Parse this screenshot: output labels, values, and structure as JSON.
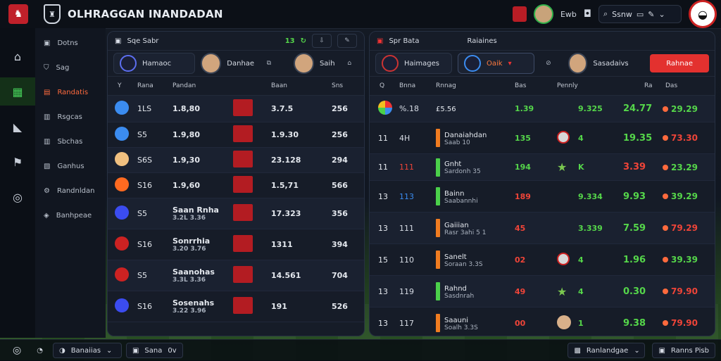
{
  "app": {
    "title": "OLHRAGGAN INANDADAN"
  },
  "topbar": {
    "user_label": "Ewb",
    "search_label": "Ssnw"
  },
  "rail": [
    {
      "icon": "house-icon"
    },
    {
      "icon": "pitch-icon"
    },
    {
      "icon": "boot-icon"
    },
    {
      "icon": "flag-icon"
    },
    {
      "icon": "ball-icon"
    }
  ],
  "sidebar": [
    {
      "label": "Dotns",
      "icon": "grid-icon"
    },
    {
      "label": "Sag",
      "icon": "shield-icon"
    },
    {
      "label": "Randatis",
      "icon": "team-icon"
    },
    {
      "label": "Rsgcas",
      "icon": "doc-icon"
    },
    {
      "label": "Sbchas",
      "icon": "doc-icon"
    },
    {
      "label": "Ganhus",
      "icon": "image-icon"
    },
    {
      "label": "Randnldan",
      "icon": "gear-icon"
    },
    {
      "label": "Banhpeae",
      "icon": "chat-icon"
    }
  ],
  "left_panel": {
    "title": "Sqe Sabr",
    "header_value": "13",
    "chip1": "Hamaoc",
    "chip2": "Danhae",
    "chip3": "Saih",
    "columns": [
      "Y",
      "Rana",
      "Pandan",
      "Baan",
      "Sns"
    ],
    "rows": [
      {
        "rank": "1LS",
        "val": "1.8,80",
        "score": "3.7.5",
        "pct": "256",
        "icon_color": "#3b8cf0",
        "label": "",
        "sub": ""
      },
      {
        "rank": "S5",
        "val": "1.9,80",
        "score": "1.9.30",
        "pct": "256",
        "icon_color": "#3b8cf0",
        "label": "",
        "sub": ""
      },
      {
        "rank": "S6S",
        "val": "1.9,30",
        "score": "23.128",
        "pct": "294",
        "icon_color": "#f0c080",
        "label": "",
        "sub": ""
      },
      {
        "rank": "S16",
        "val": "1.9,60",
        "score": "1.5,71",
        "pct": "566",
        "icon_color": "#ff6a20",
        "label": "",
        "sub": ""
      },
      {
        "rank": "S5",
        "val": "",
        "score": "17.323",
        "pct": "356",
        "icon_color": "#3b4cf0",
        "label": "Saan Rnha",
        "sub": "3.2L 3.36"
      },
      {
        "rank": "S16",
        "val": "",
        "score": "1311",
        "pct": "394",
        "icon_color": "#c22",
        "label": "Sonrrhia",
        "sub": "3.20 3.76"
      },
      {
        "rank": "S5",
        "val": "",
        "score": "14.561",
        "pct": "704",
        "icon_color": "#c22",
        "label": "Saanohas",
        "sub": "3.3L 3.36"
      },
      {
        "rank": "S16",
        "val": "",
        "score": "191",
        "pct": "526",
        "icon_color": "#3b4cf0",
        "label": "Sosenahs",
        "sub": "3.22 3.96"
      }
    ]
  },
  "right_panel": {
    "title": "Spr Bata",
    "subtitle": "Raiaines",
    "chip1": "Haimages",
    "chip2": "Oaik",
    "chip3": "Sasadaivs",
    "action_label": "Rahnae",
    "columns": [
      "Q",
      "Bnna",
      "Rnnag",
      "Bas",
      "Pennly",
      "Ra",
      "Das"
    ],
    "rows": [
      {
        "n": "",
        "tag": "%.18",
        "name": "£5.56",
        "sub": "",
        "v1": "1.39",
        "v2": "9.325",
        "v3": "24.77",
        "v4": "29.29",
        "v2c": "g",
        "v3c": "g",
        "v4c": "g",
        "bar": "",
        "icon": "multicolor"
      },
      {
        "n": "11",
        "tag": "4H",
        "name": "Danaiahdan",
        "sub": "Saab 10",
        "v1": "135",
        "v2": "4",
        "v3": "19.35",
        "v4": "73.30",
        "v2c": "g",
        "v3c": "g",
        "v4c": "r",
        "bar": "#f07c20",
        "icon": "crest"
      },
      {
        "n": "11",
        "tag": "111",
        "name": "Gnht",
        "sub": "Sardonh 35",
        "v1": "194",
        "v2": "K",
        "v3": "3.39",
        "v4": "23.29",
        "v2c": "g",
        "v3c": "r",
        "v4c": "g",
        "bar": "#4bd04a",
        "icon": "star"
      },
      {
        "n": "13",
        "tag": "113",
        "name": "Bainn",
        "sub": "Saabannhi",
        "v1": "189",
        "v2": "9.334",
        "v3": "9.93",
        "v4": "39.29",
        "v2c": "g",
        "v3c": "g",
        "v4c": "g",
        "bar": "#4bd04a",
        "icon": ""
      },
      {
        "n": "13",
        "tag": "111",
        "name": "Gaiiian",
        "sub": "Rasr 3ahi 5 1",
        "v1": "45",
        "v2": "3.339",
        "v3": "7.59",
        "v4": "79.29",
        "v2c": "g",
        "v3c": "g",
        "v4c": "r",
        "bar": "#f07c20",
        "icon": ""
      },
      {
        "n": "15",
        "tag": "110",
        "name": "Sanelt",
        "sub": "Soraan 3.3S",
        "v1": "02",
        "v2": "4",
        "v3": "1.96",
        "v4": "39.39",
        "v2c": "g",
        "v3c": "g",
        "v4c": "g",
        "bar": "#f07c20",
        "icon": "crest"
      },
      {
        "n": "13",
        "tag": "119",
        "name": "Rahnd",
        "sub": "Sasdnrah",
        "v1": "49",
        "v2": "4",
        "v3": "0.30",
        "v4": "79.90",
        "v2c": "g",
        "v3c": "g",
        "v4c": "r",
        "bar": "#4bd04a",
        "icon": "star"
      },
      {
        "n": "13",
        "tag": "117",
        "name": "Saauni",
        "sub": "Soalh 3.3S",
        "v1": "00",
        "v2": "1",
        "v3": "9.38",
        "v4": "79.90",
        "v2c": "g",
        "v3c": "g",
        "v4c": "r",
        "bar": "#f07c20",
        "icon": "face"
      }
    ]
  },
  "bottombar": {
    "left_label": "Banaiias",
    "mid_label": "Sana",
    "mid_value": "0v",
    "right_select": "Ranlandgae",
    "right_button": "Ranns Pisb"
  }
}
